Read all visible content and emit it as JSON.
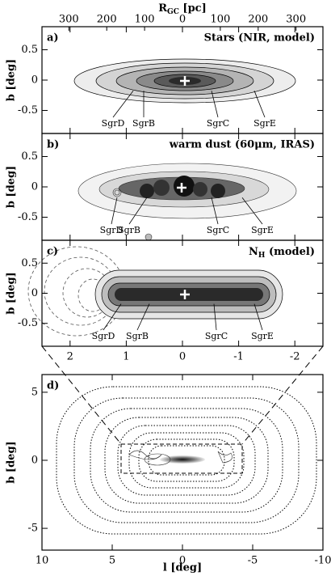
{
  "chart_data": [
    {
      "type": "contour",
      "panel_label": "a)",
      "title": "Stars (NIR, model)",
      "annotations": [
        "SgrD",
        "SgrB",
        "SgrC",
        "SgrE"
      ],
      "ylabel": "b [deg]",
      "xlim": [
        2.5,
        -2.5
      ],
      "ylim": [
        -0.88,
        0.88
      ],
      "yticks": [
        0.5,
        0,
        -0.5
      ],
      "top_axis": {
        "label": [
          "R",
          "GC",
          " [pc]"
        ],
        "lim": [
          371,
          -371
        ],
        "ticks": [
          {
            "value": 300,
            "label": "300"
          },
          {
            "value": 200,
            "label": "200"
          },
          {
            "value": 100,
            "label": "100"
          },
          0,
          {
            "value": -100,
            "label": "100"
          },
          {
            "value": -200,
            "label": "200"
          },
          {
            "value": -300,
            "label": "300"
          }
        ]
      }
    },
    {
      "type": "contour",
      "panel_label": "b)",
      "title": "warm dust (60μm, IRAS)",
      "annotations": [
        "SgrD",
        "SgrB",
        "SgrC",
        "SgrE"
      ],
      "ylabel": "b [deg]",
      "xlim": [
        2.5,
        -2.5
      ],
      "ylim": [
        -0.88,
        0.88
      ],
      "yticks": [
        0.5,
        0,
        -0.5
      ]
    },
    {
      "type": "contour",
      "panel_label": "c)",
      "title": [
        "N",
        "H",
        " (model)"
      ],
      "annotations": [
        "SgrD",
        "SgrB",
        "SgrC",
        "SgrE"
      ],
      "ylabel": "b [deg]",
      "xlim": [
        2.5,
        -2.5
      ],
      "ylim": [
        -0.88,
        0.88
      ],
      "yticks": [
        0.5,
        0,
        -0.5
      ],
      "xticks": [
        2,
        1,
        0,
        -1,
        -2
      ]
    },
    {
      "type": "contour",
      "panel_label": "d)",
      "xlabel": "l [deg]",
      "ylabel": "b [deg]",
      "xlim": [
        10,
        -10
      ],
      "ylim": [
        -6.6,
        6.3
      ],
      "xticks": [
        10,
        5,
        0,
        -5,
        -10
      ],
      "yticks": [
        5,
        0,
        -5
      ]
    }
  ]
}
